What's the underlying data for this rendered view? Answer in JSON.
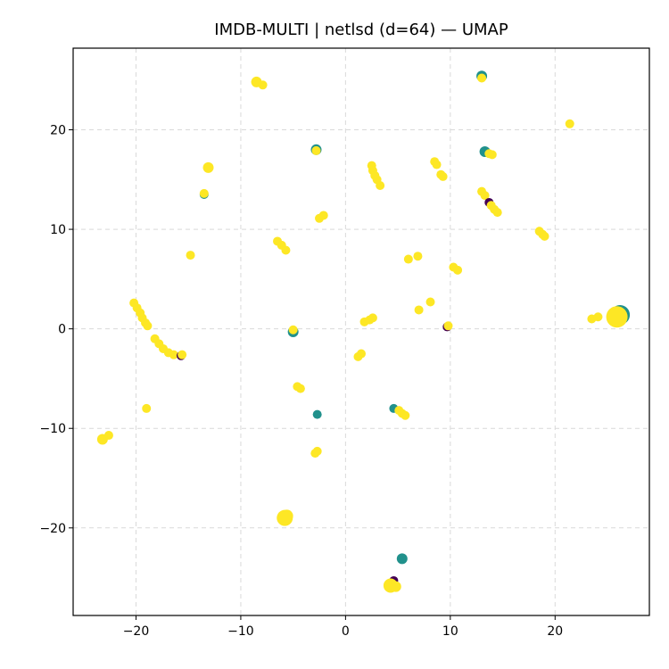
{
  "chart_data": {
    "type": "scatter",
    "title": "IMDB-MULTI | netlsd (d=64) — UMAP",
    "xlabel": "",
    "ylabel": "",
    "xlim": [
      -26,
      29
    ],
    "ylim": [
      -28.8,
      28.2
    ],
    "xticks": [
      -20,
      -10,
      0,
      10,
      20
    ],
    "yticks": [
      -20,
      -10,
      0,
      10,
      20
    ],
    "xtick_labels": [
      "−20",
      "−10",
      "0",
      "10",
      "20"
    ],
    "ytick_labels": [
      "−20",
      "−10",
      "0",
      "10",
      "20"
    ],
    "grid": true,
    "legend": "none",
    "colors": {
      "class_0": "#440154",
      "class_1": "#21918c",
      "class_2": "#fde725"
    },
    "points": [
      {
        "x": -8.5,
        "y": 24.8,
        "c": 2,
        "s": 6
      },
      {
        "x": -7.9,
        "y": 24.5,
        "c": 2,
        "s": 5
      },
      {
        "x": 13.0,
        "y": 25.4,
        "c": 1,
        "s": 6
      },
      {
        "x": 13.0,
        "y": 25.2,
        "c": 2,
        "s": 5
      },
      {
        "x": 21.4,
        "y": 20.6,
        "c": 2,
        "s": 5
      },
      {
        "x": -13.1,
        "y": 16.2,
        "c": 2,
        "s": 6
      },
      {
        "x": -13.5,
        "y": 13.5,
        "c": 1,
        "s": 5
      },
      {
        "x": -13.5,
        "y": 13.6,
        "c": 2,
        "s": 5
      },
      {
        "x": -2.8,
        "y": 18.0,
        "c": 1,
        "s": 6
      },
      {
        "x": -2.8,
        "y": 17.9,
        "c": 2,
        "s": 5
      },
      {
        "x": -2.5,
        "y": 11.1,
        "c": 2,
        "s": 5
      },
      {
        "x": -2.1,
        "y": 11.4,
        "c": 2,
        "s": 5
      },
      {
        "x": 2.5,
        "y": 16.4,
        "c": 2,
        "s": 5
      },
      {
        "x": 2.6,
        "y": 15.9,
        "c": 2,
        "s": 5
      },
      {
        "x": 2.8,
        "y": 15.4,
        "c": 2,
        "s": 5
      },
      {
        "x": 3.0,
        "y": 15.0,
        "c": 2,
        "s": 5
      },
      {
        "x": 3.3,
        "y": 14.4,
        "c": 2,
        "s": 5
      },
      {
        "x": 8.5,
        "y": 16.8,
        "c": 2,
        "s": 5
      },
      {
        "x": 8.7,
        "y": 16.5,
        "c": 2,
        "s": 5
      },
      {
        "x": 9.1,
        "y": 15.5,
        "c": 2,
        "s": 5
      },
      {
        "x": 9.3,
        "y": 15.3,
        "c": 2,
        "s": 5
      },
      {
        "x": 13.3,
        "y": 17.8,
        "c": 1,
        "s": 6
      },
      {
        "x": 13.7,
        "y": 17.6,
        "c": 2,
        "s": 5
      },
      {
        "x": 14.0,
        "y": 17.5,
        "c": 2,
        "s": 5
      },
      {
        "x": 13.0,
        "y": 13.8,
        "c": 2,
        "s": 5
      },
      {
        "x": 13.3,
        "y": 13.4,
        "c": 2,
        "s": 5
      },
      {
        "x": 13.7,
        "y": 12.7,
        "c": 0,
        "s": 5
      },
      {
        "x": 13.9,
        "y": 12.4,
        "c": 2,
        "s": 5
      },
      {
        "x": 14.2,
        "y": 12.0,
        "c": 2,
        "s": 5
      },
      {
        "x": 14.5,
        "y": 11.7,
        "c": 2,
        "s": 5
      },
      {
        "x": -14.8,
        "y": 7.4,
        "c": 2,
        "s": 5
      },
      {
        "x": -6.5,
        "y": 8.8,
        "c": 2,
        "s": 5
      },
      {
        "x": -6.1,
        "y": 8.4,
        "c": 2,
        "s": 5
      },
      {
        "x": -5.7,
        "y": 7.9,
        "c": 2,
        "s": 5
      },
      {
        "x": 6.0,
        "y": 7.0,
        "c": 2,
        "s": 5
      },
      {
        "x": 6.9,
        "y": 7.3,
        "c": 2,
        "s": 5
      },
      {
        "x": 10.3,
        "y": 6.2,
        "c": 2,
        "s": 5
      },
      {
        "x": 10.7,
        "y": 5.9,
        "c": 2,
        "s": 5
      },
      {
        "x": 18.5,
        "y": 9.8,
        "c": 2,
        "s": 5
      },
      {
        "x": 18.8,
        "y": 9.5,
        "c": 2,
        "s": 5
      },
      {
        "x": 19.0,
        "y": 9.3,
        "c": 2,
        "s": 5
      },
      {
        "x": -20.2,
        "y": 2.6,
        "c": 2,
        "s": 5
      },
      {
        "x": -19.9,
        "y": 2.1,
        "c": 2,
        "s": 5
      },
      {
        "x": -19.6,
        "y": 1.6,
        "c": 2,
        "s": 5
      },
      {
        "x": -19.4,
        "y": 1.1,
        "c": 2,
        "s": 5
      },
      {
        "x": -19.1,
        "y": 0.6,
        "c": 2,
        "s": 5
      },
      {
        "x": -18.9,
        "y": 0.3,
        "c": 2,
        "s": 5
      },
      {
        "x": -18.2,
        "y": -1.0,
        "c": 2,
        "s": 5
      },
      {
        "x": -17.8,
        "y": -1.5,
        "c": 2,
        "s": 5
      },
      {
        "x": -17.4,
        "y": -2.0,
        "c": 2,
        "s": 5
      },
      {
        "x": -16.9,
        "y": -2.4,
        "c": 2,
        "s": 5
      },
      {
        "x": -16.4,
        "y": -2.6,
        "c": 2,
        "s": 5
      },
      {
        "x": -15.7,
        "y": -2.7,
        "c": 0,
        "s": 5
      },
      {
        "x": -15.6,
        "y": -2.6,
        "c": 2,
        "s": 5
      },
      {
        "x": -19.0,
        "y": -8.0,
        "c": 2,
        "s": 5
      },
      {
        "x": -23.2,
        "y": -11.1,
        "c": 2,
        "s": 6
      },
      {
        "x": -22.6,
        "y": -10.7,
        "c": 2,
        "s": 5
      },
      {
        "x": -5.0,
        "y": -0.3,
        "c": 1,
        "s": 6
      },
      {
        "x": -5.0,
        "y": -0.1,
        "c": 2,
        "s": 5
      },
      {
        "x": -4.6,
        "y": -5.8,
        "c": 2,
        "s": 5
      },
      {
        "x": -4.3,
        "y": -6.0,
        "c": 2,
        "s": 5
      },
      {
        "x": -2.7,
        "y": -8.6,
        "c": 1,
        "s": 5
      },
      {
        "x": -2.9,
        "y": -12.5,
        "c": 2,
        "s": 5
      },
      {
        "x": -2.7,
        "y": -12.3,
        "c": 2,
        "s": 5
      },
      {
        "x": -5.8,
        "y": -19.0,
        "c": 2,
        "s": 9
      },
      {
        "x": -5.6,
        "y": -18.8,
        "c": 2,
        "s": 7
      },
      {
        "x": 1.2,
        "y": -2.8,
        "c": 2,
        "s": 5
      },
      {
        "x": 1.5,
        "y": -2.5,
        "c": 2,
        "s": 5
      },
      {
        "x": 1.8,
        "y": 0.7,
        "c": 2,
        "s": 5
      },
      {
        "x": 2.3,
        "y": 0.9,
        "c": 2,
        "s": 5
      },
      {
        "x": 2.6,
        "y": 1.1,
        "c": 2,
        "s": 5
      },
      {
        "x": 7.0,
        "y": 1.9,
        "c": 2,
        "s": 5
      },
      {
        "x": 8.1,
        "y": 2.7,
        "c": 2,
        "s": 5
      },
      {
        "x": 9.7,
        "y": 0.2,
        "c": 0,
        "s": 5
      },
      {
        "x": 9.8,
        "y": 0.3,
        "c": 2,
        "s": 5
      },
      {
        "x": 4.6,
        "y": -8.0,
        "c": 1,
        "s": 5
      },
      {
        "x": 5.1,
        "y": -8.2,
        "c": 2,
        "s": 5
      },
      {
        "x": 5.4,
        "y": -8.5,
        "c": 2,
        "s": 5
      },
      {
        "x": 5.7,
        "y": -8.7,
        "c": 2,
        "s": 5
      },
      {
        "x": 5.4,
        "y": -23.1,
        "c": 1,
        "s": 6
      },
      {
        "x": 4.6,
        "y": -25.3,
        "c": 0,
        "s": 5
      },
      {
        "x": 4.3,
        "y": -25.8,
        "c": 2,
        "s": 8
      },
      {
        "x": 4.8,
        "y": -25.9,
        "c": 2,
        "s": 6
      },
      {
        "x": 23.5,
        "y": 1.0,
        "c": 2,
        "s": 5
      },
      {
        "x": 24.1,
        "y": 1.2,
        "c": 2,
        "s": 5
      },
      {
        "x": 26.2,
        "y": 1.4,
        "c": 1,
        "s": 11
      },
      {
        "x": 26.0,
        "y": 0.8,
        "c": 1,
        "s": 7
      },
      {
        "x": 25.9,
        "y": 1.2,
        "c": 2,
        "s": 12
      }
    ]
  }
}
